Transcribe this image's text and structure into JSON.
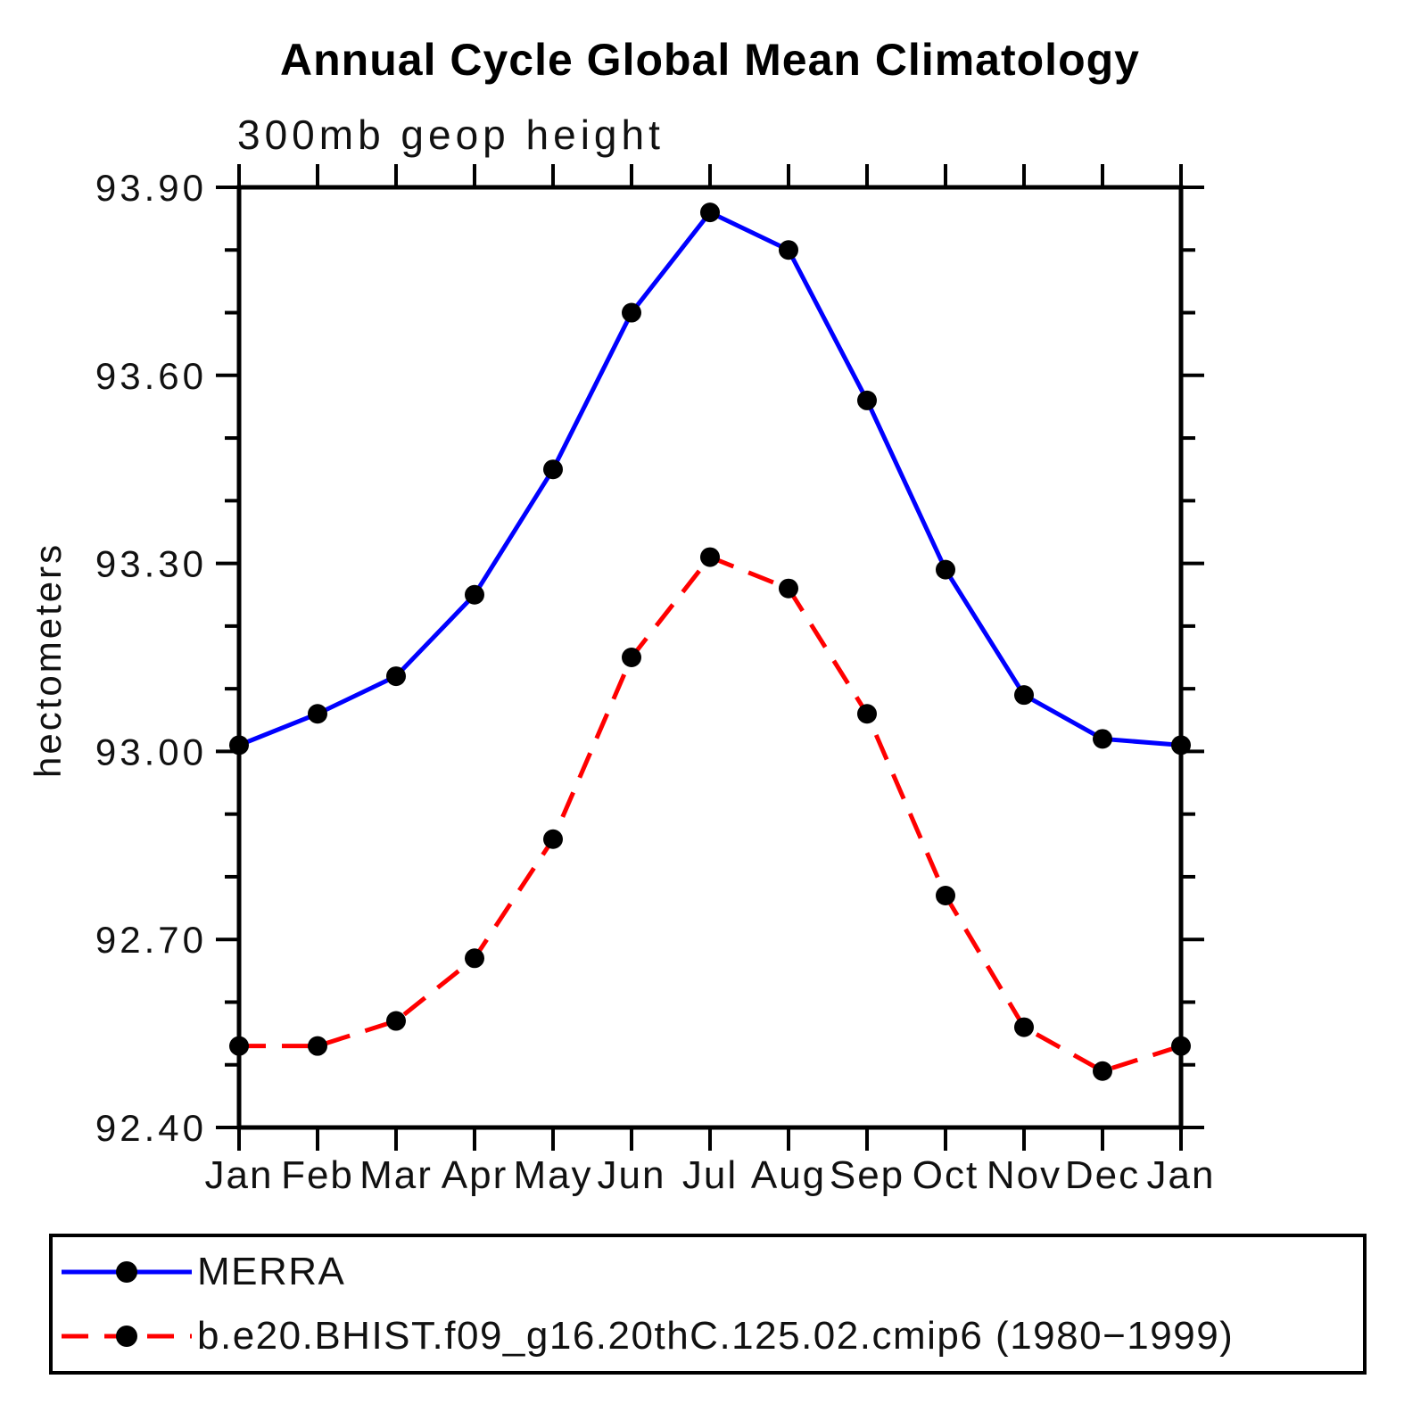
{
  "title": "Annual Cycle Global Mean Climatology",
  "subtitle": "300mb geop height",
  "y_axis_title": "hectometers",
  "chart_data": {
    "type": "line",
    "title": "Annual Cycle Global Mean Climatology",
    "subtitle": "300mb geop height",
    "ylabel": "hectometers",
    "xlabel": "",
    "categories": [
      "Jan",
      "Feb",
      "Mar",
      "Apr",
      "May",
      "Jun",
      "Jul",
      "Aug",
      "Sep",
      "Oct",
      "Nov",
      "Dec",
      "Jan"
    ],
    "ylim": [
      92.4,
      93.9
    ],
    "ytick_major": [
      92.4,
      92.7,
      93.0,
      93.3,
      93.6,
      93.9
    ],
    "ytick_labels": [
      "92.40",
      "92.70",
      "93.00",
      "93.30",
      "93.60",
      "93.90"
    ],
    "ytick_minor_step": 0.1,
    "grid": false,
    "legend_position": "bottom",
    "marker": "filled-circle",
    "marker_color": "#000000",
    "series": [
      {
        "name": "MERRA",
        "color": "#0000ff",
        "line_style": "solid",
        "values": [
          93.01,
          93.06,
          93.12,
          93.25,
          93.45,
          93.7,
          93.86,
          93.8,
          93.56,
          93.29,
          93.09,
          93.02,
          93.01
        ]
      },
      {
        "name": "b.e20.BHIST.f09_g16.20thC.125.02.cmip6 (1980−1999)",
        "color": "#ff0000",
        "line_style": "dashed",
        "values": [
          92.53,
          92.53,
          92.57,
          92.67,
          92.86,
          93.15,
          93.31,
          93.26,
          93.06,
          92.77,
          92.56,
          92.49,
          92.53
        ]
      }
    ]
  }
}
